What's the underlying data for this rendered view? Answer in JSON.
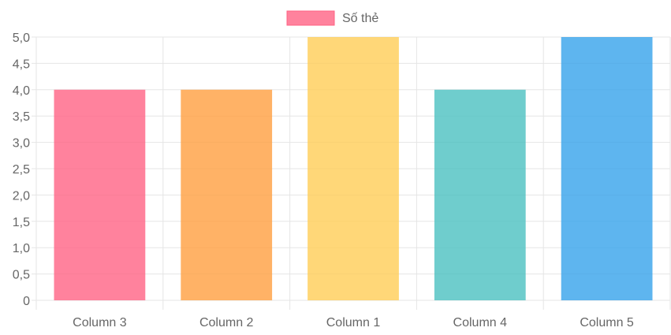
{
  "chart_data": {
    "type": "bar",
    "categories": [
      "Column 3",
      "Column 2",
      "Column 1",
      "Column 4",
      "Column 5"
    ],
    "series": [
      {
        "name": "Số thẻ",
        "values": [
          4,
          4,
          5,
          4,
          5
        ]
      }
    ],
    "ylim": [
      0,
      5
    ],
    "yticks": [
      "0",
      "0,5",
      "1,0",
      "1,5",
      "2,0",
      "2,5",
      "3,0",
      "3,5",
      "4,0",
      "4,5",
      "5,0"
    ],
    "grid": true,
    "legend": "top-center",
    "colors": {
      "bars": [
        "#ff6384",
        "#ff9f40",
        "#ffcd56",
        "#4bc0c0",
        "#36a2eb"
      ],
      "legend_swatch": "#ff6384",
      "grid": "#e5e5e5",
      "text": "#666666"
    }
  }
}
